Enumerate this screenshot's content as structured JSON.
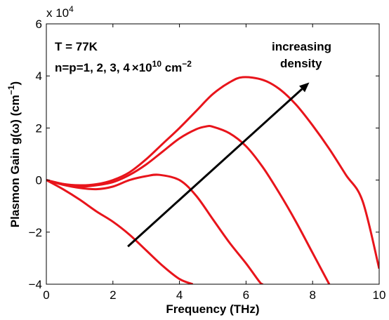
{
  "chart_data": {
    "type": "line",
    "title": "",
    "xlabel": "Frequency (THz)",
    "ylabel": {
      "main": "Plasmon Gain g(ω) (cm",
      "sup": "−1",
      "end": ")"
    },
    "xlim": [
      0,
      10
    ],
    "ylim": [
      -40000,
      60000
    ],
    "x_ticks": [
      "0",
      "2",
      "4",
      "6",
      "8",
      "10"
    ],
    "x_tick_values": [
      0,
      2,
      4,
      6,
      8,
      10
    ],
    "y_ticks": [
      "−4",
      "−2",
      "0",
      "2",
      "4",
      "6"
    ],
    "y_tick_values": [
      -40000,
      -20000,
      0,
      20000,
      40000,
      60000
    ],
    "y_multiplier": {
      "base": "x 10",
      "exp": "4"
    },
    "grid": false,
    "line_color": "#e8141b",
    "arrow_color": "#000000",
    "series": [
      {
        "x": [
          0,
          0.5,
          1,
          1.5,
          2,
          2.5,
          3,
          3.5,
          4,
          4.4
        ],
        "y": [
          0,
          -3500,
          -7500,
          -12000,
          -16000,
          -21000,
          -27000,
          -33000,
          -38000,
          -40000
        ]
      },
      {
        "x": [
          0,
          0.5,
          1,
          1.5,
          2,
          2.5,
          3,
          3.4,
          4,
          4.5,
          5,
          5.5,
          6,
          6.4,
          6.5
        ],
        "y": [
          0,
          -1800,
          -3000,
          -3500,
          -2500,
          0,
          1500,
          2000,
          0,
          -6000,
          -15000,
          -24000,
          -32000,
          -39000,
          -40000
        ]
      },
      {
        "x": [
          0,
          0.5,
          1,
          1.5,
          2,
          2.5,
          3,
          3.5,
          4,
          4.5,
          4.8,
          5,
          5.5,
          6,
          6.5,
          7,
          7.5,
          8,
          8.5
        ],
        "y": [
          0,
          -1500,
          -2500,
          -2000,
          -800,
          2000,
          6000,
          11000,
          16000,
          19500,
          20600,
          20500,
          18000,
          13000,
          5000,
          -5000,
          -16000,
          -28000,
          -40000
        ]
      },
      {
        "x": [
          0,
          0.5,
          1,
          1.5,
          2,
          2.5,
          3,
          3.5,
          4,
          4.5,
          5,
          5.5,
          5.9,
          6.5,
          7,
          7.5,
          8,
          8.5,
          9,
          9.5,
          10
        ],
        "y": [
          0,
          -1500,
          -2000,
          -1600,
          0,
          3000,
          8000,
          14000,
          20000,
          26500,
          33000,
          37500,
          39500,
          38500,
          35000,
          29000,
          21000,
          12000,
          2000,
          -8000,
          -34000
        ]
      }
    ],
    "arrow": {
      "from": [
        2.45,
        -25500
      ],
      "to": [
        7.9,
        37500
      ]
    },
    "annotations": {
      "temperature": "T = 77K",
      "density_prefix": "n=p=1, 2, 3, 4",
      "density_times": "×",
      "density_base": "10",
      "density_exp": "10",
      "density_unit": " cm",
      "density_unit_exp": "−2",
      "arrow_label_line1": "increasing",
      "arrow_label_line2": "density"
    }
  }
}
